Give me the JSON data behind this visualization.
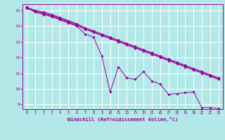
{
  "xlabel": "Windchill (Refroidissement éolien,°C)",
  "bg_color": "#b2e8e8",
  "grid_color": "#ffffff",
  "line_color": "#990099",
  "xlim": [
    -0.5,
    23.5
  ],
  "ylim": [
    8.7,
    15.4
  ],
  "yticks": [
    9,
    10,
    11,
    12,
    13,
    14,
    15
  ],
  "xticks": [
    0,
    1,
    2,
    3,
    4,
    5,
    6,
    7,
    8,
    9,
    10,
    11,
    12,
    13,
    14,
    15,
    16,
    17,
    18,
    19,
    20,
    21,
    22,
    23
  ],
  "lines": [
    [
      15.2,
      15.0,
      14.85,
      14.7,
      14.5,
      14.3,
      14.1,
      13.85,
      13.65,
      13.45,
      13.25,
      13.05,
      12.85,
      12.65,
      12.45,
      12.25,
      12.05,
      11.85,
      11.65,
      11.45,
      11.25,
      11.05,
      10.85,
      10.65
    ],
    [
      15.2,
      14.95,
      14.8,
      14.65,
      14.45,
      14.25,
      14.05,
      13.8,
      13.6,
      13.4,
      13.2,
      13.0,
      12.8,
      12.6,
      12.4,
      12.2,
      12.0,
      11.8,
      11.6,
      11.4,
      11.2,
      11.0,
      10.8,
      10.6
    ],
    [
      15.2,
      15.0,
      14.9,
      14.75,
      14.55,
      14.35,
      14.15,
      13.9,
      13.7,
      13.5,
      13.3,
      13.1,
      12.9,
      12.7,
      12.5,
      12.3,
      12.1,
      11.9,
      11.7,
      11.5,
      11.3,
      11.1,
      10.9,
      10.7
    ],
    [
      15.15,
      14.9,
      14.75,
      14.6,
      14.4,
      14.2,
      14.0,
      13.5,
      13.3,
      12.1,
      9.8,
      11.4,
      10.7,
      10.6,
      11.1,
      10.5,
      10.3,
      9.65,
      9.7,
      9.75,
      9.8,
      8.8,
      8.8,
      8.75
    ]
  ]
}
